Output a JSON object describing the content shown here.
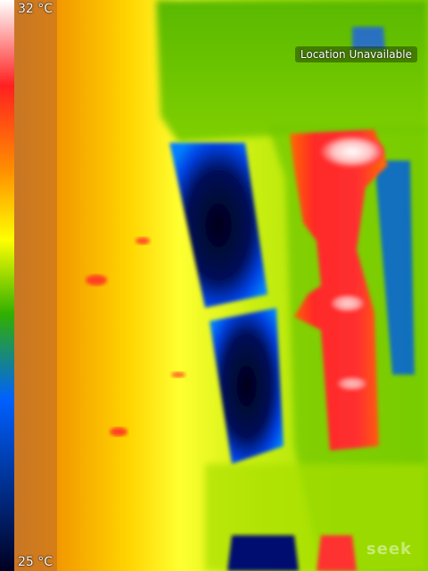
{
  "app": {
    "brand_watermark": "seek"
  },
  "temperature_scale": {
    "max_label": "32 °C",
    "min_label": "25 °C",
    "palette": [
      "#ffffff",
      "#ff2020",
      "#ff9000",
      "#ffff00",
      "#30b000",
      "#0060ff",
      "#000020"
    ]
  },
  "status": {
    "location": "Location Unavailable"
  },
  "thermal_palette": {
    "background_hot": "#f7a300",
    "background_warm": "#ffff20",
    "green_zone": "#7acc00",
    "cold_blue": "#0050f0",
    "coldest": "#00002a",
    "hot_red": "#ff2a2a",
    "hottest": "#ffe6e6"
  }
}
